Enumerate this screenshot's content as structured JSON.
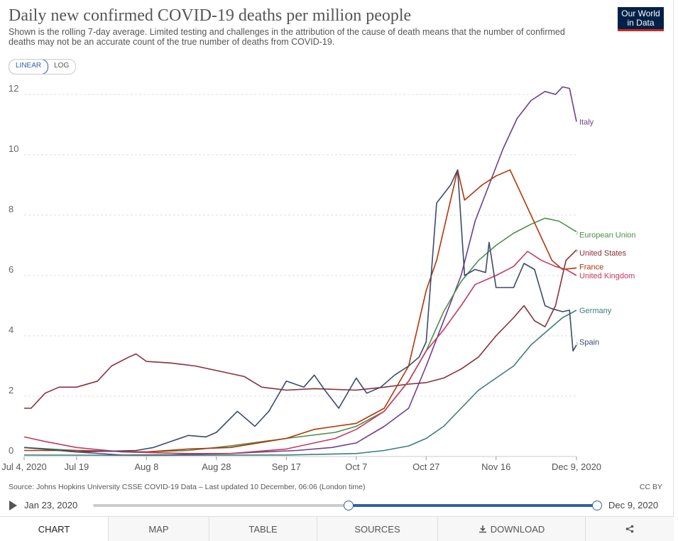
{
  "header": {
    "title": "Daily new confirmed COVID-19 deaths per million people",
    "subtitle": "Shown is the rolling 7-day average. Limited testing and challenges in the attribution of the cause of death means that the number of confirmed deaths may not be an accurate count of the true number of deaths from COVID-19.",
    "logo_line1": "Our World",
    "logo_line2": "in Data"
  },
  "scale_toggle": {
    "linear": "LINEAR",
    "log": "LOG",
    "selected": "LINEAR"
  },
  "footer": {
    "source": "Source: Johns Hopkins University CSSE COVID-19 Data – Last updated 10 December, 06:06 (London time)",
    "license": "CC BY"
  },
  "timeline": {
    "start_label": "Jan 23, 2020",
    "end_label": "Dec 9, 2020"
  },
  "tabs": {
    "chart": "CHART",
    "map": "MAP",
    "table": "TABLE",
    "sources": "SOURCES",
    "download": "DOWNLOAD"
  },
  "icons": {
    "play": "play-icon",
    "download": "download-icon",
    "share": "share-icon"
  },
  "chart_data": {
    "type": "line",
    "title": "Daily new confirmed COVID-19 deaths per million people",
    "x_start": "2020-07-04",
    "x_end": "2020-12-09",
    "ylim": [
      0,
      12
    ],
    "y_ticks": [
      0,
      2,
      4,
      6,
      8,
      10,
      12
    ],
    "x_ticks": [
      {
        "date": "2020-07-04",
        "label": "Jul 4, 2020"
      },
      {
        "date": "2020-07-19",
        "label": "Jul 19"
      },
      {
        "date": "2020-08-08",
        "label": "Aug 8"
      },
      {
        "date": "2020-08-28",
        "label": "Aug 28"
      },
      {
        "date": "2020-09-17",
        "label": "Sep 17"
      },
      {
        "date": "2020-10-07",
        "label": "Oct 7"
      },
      {
        "date": "2020-10-27",
        "label": "Oct 27"
      },
      {
        "date": "2020-11-16",
        "label": "Nov 16"
      },
      {
        "date": "2020-12-09",
        "label": "Dec 9, 2020"
      }
    ],
    "grid": "horizontal dashed",
    "legend": "inline labels at line ends (right)",
    "series": [
      {
        "name": "Italy",
        "color": "#6d3e91",
        "label_y": 11.1,
        "points": [
          [
            "2020-07-04",
            0.3
          ],
          [
            "2020-07-10",
            0.25
          ],
          [
            "2020-07-19",
            0.15
          ],
          [
            "2020-08-01",
            0.05
          ],
          [
            "2020-08-15",
            0.06
          ],
          [
            "2020-09-01",
            0.1
          ],
          [
            "2020-09-10",
            0.15
          ],
          [
            "2020-09-20",
            0.2
          ],
          [
            "2020-09-30",
            0.3
          ],
          [
            "2020-10-07",
            0.45
          ],
          [
            "2020-10-15",
            1.0
          ],
          [
            "2020-10-22",
            1.6
          ],
          [
            "2020-10-27",
            3.0
          ],
          [
            "2020-11-01",
            4.5
          ],
          [
            "2020-11-06",
            6.0
          ],
          [
            "2020-11-10",
            7.8
          ],
          [
            "2020-11-14",
            9.0
          ],
          [
            "2020-11-18",
            10.2
          ],
          [
            "2020-11-22",
            11.2
          ],
          [
            "2020-11-26",
            11.8
          ],
          [
            "2020-11-30",
            12.1
          ],
          [
            "2020-12-03",
            12.0
          ],
          [
            "2020-12-05",
            12.25
          ],
          [
            "2020-12-07",
            12.2
          ],
          [
            "2020-12-09",
            11.1
          ]
        ]
      },
      {
        "name": "European Union",
        "color": "#4c8f4a",
        "label_y": 7.35,
        "points": [
          [
            "2020-07-04",
            0.3
          ],
          [
            "2020-07-19",
            0.2
          ],
          [
            "2020-08-08",
            0.15
          ],
          [
            "2020-08-20",
            0.2
          ],
          [
            "2020-09-01",
            0.35
          ],
          [
            "2020-09-17",
            0.6
          ],
          [
            "2020-10-01",
            0.8
          ],
          [
            "2020-10-07",
            1.0
          ],
          [
            "2020-10-15",
            1.5
          ],
          [
            "2020-10-22",
            2.5
          ],
          [
            "2020-10-27",
            3.5
          ],
          [
            "2020-11-01",
            4.8
          ],
          [
            "2020-11-06",
            5.8
          ],
          [
            "2020-11-11",
            6.5
          ],
          [
            "2020-11-16",
            7.0
          ],
          [
            "2020-11-21",
            7.4
          ],
          [
            "2020-11-26",
            7.7
          ],
          [
            "2020-11-30",
            7.9
          ],
          [
            "2020-12-04",
            7.8
          ],
          [
            "2020-12-09",
            7.45
          ]
        ]
      },
      {
        "name": "United States",
        "color": "#883039",
        "label_y": 6.75,
        "points": [
          [
            "2020-07-04",
            1.6
          ],
          [
            "2020-07-06",
            1.6
          ],
          [
            "2020-07-10",
            2.1
          ],
          [
            "2020-07-14",
            2.3
          ],
          [
            "2020-07-19",
            2.3
          ],
          [
            "2020-07-25",
            2.5
          ],
          [
            "2020-07-29",
            3.0
          ],
          [
            "2020-08-03",
            3.3
          ],
          [
            "2020-08-05",
            3.4
          ],
          [
            "2020-08-08",
            3.15
          ],
          [
            "2020-08-15",
            3.1
          ],
          [
            "2020-08-22",
            3.0
          ],
          [
            "2020-08-28",
            2.85
          ],
          [
            "2020-09-05",
            2.65
          ],
          [
            "2020-09-10",
            2.3
          ],
          [
            "2020-09-17",
            2.2
          ],
          [
            "2020-09-25",
            2.25
          ],
          [
            "2020-10-07",
            2.2
          ],
          [
            "2020-10-15",
            2.3
          ],
          [
            "2020-10-22",
            2.4
          ],
          [
            "2020-10-27",
            2.45
          ],
          [
            "2020-11-01",
            2.6
          ],
          [
            "2020-11-06",
            2.9
          ],
          [
            "2020-11-11",
            3.3
          ],
          [
            "2020-11-16",
            4.0
          ],
          [
            "2020-11-21",
            4.6
          ],
          [
            "2020-11-24",
            5.0
          ],
          [
            "2020-11-27",
            4.5
          ],
          [
            "2020-11-30",
            4.3
          ],
          [
            "2020-12-03",
            5.0
          ],
          [
            "2020-12-06",
            6.5
          ],
          [
            "2020-12-09",
            6.85
          ]
        ]
      },
      {
        "name": "France",
        "color": "#b13507",
        "label_y": 6.3,
        "points": [
          [
            "2020-07-04",
            0.2
          ],
          [
            "2020-07-19",
            0.2
          ],
          [
            "2020-08-08",
            0.15
          ],
          [
            "2020-08-20",
            0.25
          ],
          [
            "2020-09-01",
            0.3
          ],
          [
            "2020-09-17",
            0.6
          ],
          [
            "2020-09-25",
            0.9
          ],
          [
            "2020-10-01",
            1.0
          ],
          [
            "2020-10-07",
            1.1
          ],
          [
            "2020-10-15",
            1.6
          ],
          [
            "2020-10-22",
            3.0
          ],
          [
            "2020-10-25",
            4.5
          ],
          [
            "2020-10-27",
            5.5
          ],
          [
            "2020-10-30",
            6.5
          ],
          [
            "2020-11-02",
            8.0
          ],
          [
            "2020-11-05",
            9.5
          ],
          [
            "2020-11-07",
            8.5
          ],
          [
            "2020-11-12",
            9.0
          ],
          [
            "2020-11-16",
            9.3
          ],
          [
            "2020-11-20",
            9.5
          ],
          [
            "2020-11-24",
            8.5
          ],
          [
            "2020-11-28",
            7.5
          ],
          [
            "2020-12-02",
            6.5
          ],
          [
            "2020-12-05",
            6.2
          ],
          [
            "2020-12-09",
            6.25
          ]
        ]
      },
      {
        "name": "United Kingdom",
        "color": "#c43a60",
        "label_y": 6.0,
        "points": [
          [
            "2020-07-04",
            0.65
          ],
          [
            "2020-07-10",
            0.5
          ],
          [
            "2020-07-19",
            0.3
          ],
          [
            "2020-08-01",
            0.15
          ],
          [
            "2020-08-20",
            0.1
          ],
          [
            "2020-09-01",
            0.1
          ],
          [
            "2020-09-17",
            0.25
          ],
          [
            "2020-10-01",
            0.6
          ],
          [
            "2020-10-07",
            0.9
          ],
          [
            "2020-10-15",
            1.5
          ],
          [
            "2020-10-22",
            2.5
          ],
          [
            "2020-10-27",
            3.5
          ],
          [
            "2020-11-01",
            4.2
          ],
          [
            "2020-11-06",
            5.0
          ],
          [
            "2020-11-10",
            5.7
          ],
          [
            "2020-11-16",
            6.0
          ],
          [
            "2020-11-21",
            6.3
          ],
          [
            "2020-11-25",
            6.8
          ],
          [
            "2020-11-29",
            6.5
          ],
          [
            "2020-12-03",
            6.3
          ],
          [
            "2020-12-06",
            6.2
          ],
          [
            "2020-12-09",
            6.0
          ]
        ]
      },
      {
        "name": "Germany",
        "color": "#3c7d7a",
        "label_y": 4.85,
        "points": [
          [
            "2020-07-04",
            0.05
          ],
          [
            "2020-08-08",
            0.04
          ],
          [
            "2020-09-17",
            0.05
          ],
          [
            "2020-10-07",
            0.1
          ],
          [
            "2020-10-15",
            0.2
          ],
          [
            "2020-10-22",
            0.35
          ],
          [
            "2020-10-27",
            0.6
          ],
          [
            "2020-11-01",
            1.0
          ],
          [
            "2020-11-06",
            1.6
          ],
          [
            "2020-11-11",
            2.2
          ],
          [
            "2020-11-16",
            2.6
          ],
          [
            "2020-11-21",
            3.0
          ],
          [
            "2020-11-26",
            3.7
          ],
          [
            "2020-12-01",
            4.2
          ],
          [
            "2020-12-05",
            4.6
          ],
          [
            "2020-12-09",
            4.85
          ]
        ]
      },
      {
        "name": "Spain",
        "color": "#3b4a6a",
        "label_y": 3.8,
        "points": [
          [
            "2020-07-04",
            0.3
          ],
          [
            "2020-07-19",
            0.15
          ],
          [
            "2020-08-05",
            0.2
          ],
          [
            "2020-08-10",
            0.3
          ],
          [
            "2020-08-15",
            0.5
          ],
          [
            "2020-08-20",
            0.7
          ],
          [
            "2020-08-25",
            0.65
          ],
          [
            "2020-08-28",
            0.8
          ],
          [
            "2020-09-03",
            1.5
          ],
          [
            "2020-09-08",
            1.0
          ],
          [
            "2020-09-12",
            1.5
          ],
          [
            "2020-09-17",
            2.5
          ],
          [
            "2020-09-22",
            2.3
          ],
          [
            "2020-09-25",
            2.7
          ],
          [
            "2020-09-28",
            2.2
          ],
          [
            "2020-10-02",
            1.6
          ],
          [
            "2020-10-07",
            2.6
          ],
          [
            "2020-10-10",
            2.1
          ],
          [
            "2020-10-14",
            2.3
          ],
          [
            "2020-10-18",
            2.7
          ],
          [
            "2020-10-22",
            3.0
          ],
          [
            "2020-10-25",
            3.3
          ],
          [
            "2020-10-27",
            3.8
          ],
          [
            "2020-10-30",
            8.4
          ],
          [
            "2020-11-03",
            9.0
          ],
          [
            "2020-11-05",
            9.5
          ],
          [
            "2020-11-07",
            6.0
          ],
          [
            "2020-11-10",
            6.2
          ],
          [
            "2020-11-13",
            6.1
          ],
          [
            "2020-11-14",
            7.1
          ],
          [
            "2020-11-16",
            5.6
          ],
          [
            "2020-11-21",
            5.6
          ],
          [
            "2020-11-24",
            6.4
          ],
          [
            "2020-11-27",
            6.2
          ],
          [
            "2020-11-30",
            5.0
          ],
          [
            "2020-12-02",
            4.9
          ],
          [
            "2020-12-05",
            4.8
          ],
          [
            "2020-12-07",
            4.85
          ],
          [
            "2020-12-08",
            3.5
          ],
          [
            "2020-12-09",
            3.7
          ]
        ]
      }
    ]
  }
}
